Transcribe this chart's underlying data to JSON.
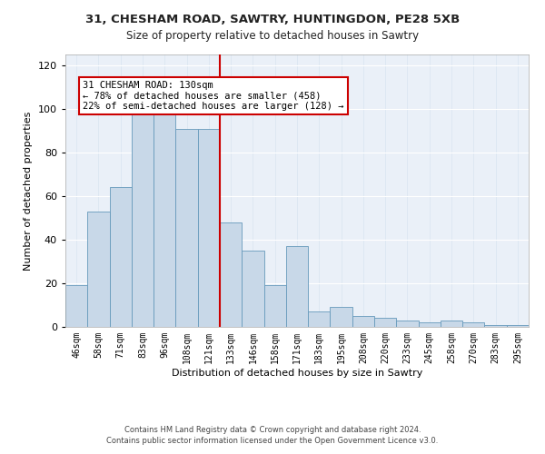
{
  "title_line1": "31, CHESHAM ROAD, SAWTRY, HUNTINGDON, PE28 5XB",
  "title_line2": "Size of property relative to detached houses in Sawtry",
  "xlabel": "Distribution of detached houses by size in Sawtry",
  "ylabel": "Number of detached properties",
  "categories": [
    "46sqm",
    "58sqm",
    "71sqm",
    "83sqm",
    "96sqm",
    "108sqm",
    "121sqm",
    "133sqm",
    "146sqm",
    "158sqm",
    "171sqm",
    "183sqm",
    "195sqm",
    "208sqm",
    "220sqm",
    "233sqm",
    "245sqm",
    "258sqm",
    "270sqm",
    "283sqm",
    "295sqm"
  ],
  "bar_values": [
    19,
    53,
    64,
    100,
    98,
    91,
    91,
    48,
    35,
    19,
    37,
    7,
    9,
    5,
    4,
    3,
    2,
    3,
    2,
    1,
    1
  ],
  "bar_color": "#c8d8e8",
  "bar_edge_color": "#6699bb",
  "vline_position": 7,
  "vline_color": "#cc0000",
  "annotation_text": "31 CHESHAM ROAD: 130sqm\n← 78% of detached houses are smaller (458)\n22% of semi-detached houses are larger (128) →",
  "annotation_box_facecolor": "#ffffff",
  "annotation_border_color": "#cc0000",
  "ylim": [
    0,
    125
  ],
  "yticks": [
    0,
    20,
    40,
    60,
    80,
    100,
    120
  ],
  "grid_color": "#d8e4f0",
  "background_color": "#eaf0f8",
  "footer_line1": "Contains HM Land Registry data © Crown copyright and database right 2024.",
  "footer_line2": "Contains public sector information licensed under the Open Government Licence v3.0.",
  "title1_fontsize": 9.5,
  "title2_fontsize": 8.5,
  "ylabel_fontsize": 8,
  "xlabel_fontsize": 8,
  "tick_fontsize": 7,
  "footer_fontsize": 6,
  "annotation_fontsize": 7.5
}
